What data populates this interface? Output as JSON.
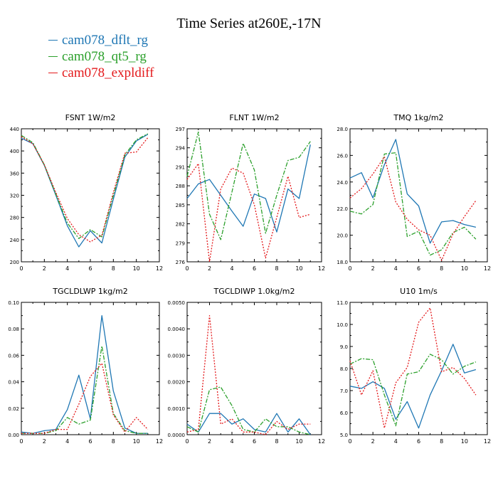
{
  "title": "Time Series at260E,-17N",
  "legend": [
    {
      "label": "cam078_dflt_rg",
      "color": "#1f77b4"
    },
    {
      "label": "cam078_qt5_rg",
      "color": "#2ca02c"
    },
    {
      "label": "cam078_expldiff",
      "color": "#e41a1c"
    }
  ],
  "chart_data": [
    {
      "type": "line",
      "title": "FSNT   1W/m2",
      "x": [
        0,
        1,
        2,
        3,
        4,
        5,
        6,
        7,
        8,
        9,
        10,
        11
      ],
      "xlim": [
        0,
        12
      ],
      "xticks": [
        "0",
        "2",
        "4",
        "6",
        "8",
        "10",
        "12"
      ],
      "ylim": [
        200,
        440
      ],
      "yticks": [
        "200",
        "240",
        "280",
        "320",
        "360",
        "400",
        "440"
      ],
      "series": [
        {
          "name": "cam078_dflt_rg",
          "values": [
            423,
            413,
            374,
            320,
            265,
            227,
            256,
            234,
            313,
            389,
            418,
            430
          ]
        },
        {
          "name": "cam078_qt5_rg",
          "values": [
            428,
            415,
            375,
            322,
            270,
            242,
            258,
            245,
            320,
            393,
            420,
            431
          ]
        },
        {
          "name": "cam078_expldiff",
          "values": [
            426,
            413,
            375,
            325,
            278,
            249,
            236,
            248,
            325,
            396,
            398,
            424
          ]
        }
      ]
    },
    {
      "type": "line",
      "title": "FLNT   1W/m2",
      "x": [
        0,
        1,
        2,
        3,
        4,
        5,
        6,
        7,
        8,
        9,
        10,
        11
      ],
      "xlim": [
        0,
        12
      ],
      "xticks": [
        "0",
        "2",
        "4",
        "6",
        "8",
        "10",
        "12"
      ],
      "ylim": [
        276,
        297
      ],
      "yticks": [
        "276",
        "279",
        "282",
        "285",
        "288",
        "291",
        "294",
        "297"
      ],
      "series": [
        {
          "name": "cam078_dflt_rg",
          "values": [
            286.0,
            288.3,
            289.0,
            286.5,
            284.0,
            281.6,
            286.7,
            286.0,
            280.7,
            287.5,
            286.0,
            294.5
          ]
        },
        {
          "name": "cam078_qt5_rg",
          "values": [
            289.5,
            296.5,
            283.5,
            279.5,
            287.0,
            294.7,
            290.5,
            280.5,
            286.5,
            292.0,
            292.5,
            295.0
          ]
        },
        {
          "name": "cam078_expldiff",
          "values": [
            289.0,
            291.5,
            276.0,
            287.5,
            290.8,
            290.0,
            285.0,
            276.6,
            283.0,
            289.5,
            283.0,
            283.5
          ]
        }
      ]
    },
    {
      "type": "line",
      "title": "TMQ   1kg/m2",
      "x": [
        0,
        1,
        2,
        3,
        4,
        5,
        6,
        7,
        8,
        9,
        10,
        11
      ],
      "xlim": [
        0,
        12
      ],
      "xticks": [
        "0",
        "2",
        "4",
        "6",
        "8",
        "10",
        "12"
      ],
      "ylim": [
        18.0,
        28.0
      ],
      "yticks": [
        "18.0",
        "20.0",
        "22.0",
        "24.0",
        "26.0",
        "28.0"
      ],
      "series": [
        {
          "name": "cam078_dflt_rg",
          "values": [
            24.3,
            24.7,
            22.8,
            25.3,
            27.2,
            23.1,
            22.2,
            19.4,
            21.0,
            21.1,
            20.8,
            20.6
          ]
        },
        {
          "name": "cam078_qt5_rg",
          "values": [
            21.8,
            21.6,
            22.3,
            26.1,
            26.2,
            19.9,
            20.3,
            18.5,
            18.9,
            20.2,
            20.6,
            19.7
          ]
        },
        {
          "name": "cam078_expldiff",
          "values": [
            22.8,
            23.5,
            24.6,
            25.9,
            22.5,
            21.2,
            20.4,
            20.0,
            18.1,
            20.1,
            21.4,
            22.6
          ]
        }
      ]
    },
    {
      "type": "line",
      "title": "TGCLDLWP   1kg/m2",
      "x": [
        0,
        1,
        2,
        3,
        4,
        5,
        6,
        7,
        8,
        9,
        10,
        11
      ],
      "xlim": [
        0,
        12
      ],
      "xticks": [
        "0",
        "2",
        "4",
        "6",
        "8",
        "10",
        "12"
      ],
      "ylim": [
        0,
        0.1
      ],
      "yticks": [
        "0.00",
        "0.02",
        "0.04",
        "0.06",
        "0.08",
        "0.10"
      ],
      "series": [
        {
          "name": "cam078_dflt_rg",
          "values": [
            0.002,
            0.001,
            0.003,
            0.004,
            0.019,
            0.045,
            0.012,
            0.09,
            0.033,
            0.005,
            0.001,
            0.001
          ]
        },
        {
          "name": "cam078_qt5_rg",
          "values": [
            0.001,
            0.001,
            0.001,
            0.003,
            0.013,
            0.008,
            0.011,
            0.067,
            0.016,
            0.003,
            0.001,
            0.001
          ]
        },
        {
          "name": "cam078_expldiff",
          "values": [
            0.001,
            0.001,
            0.001,
            0.004,
            0.004,
            0.023,
            0.044,
            0.054,
            0.015,
            0.002,
            0.013,
            0.004
          ]
        }
      ]
    },
    {
      "type": "line",
      "title": "TGCLDIWP   1.0kg/m2",
      "x": [
        0,
        1,
        2,
        3,
        4,
        5,
        6,
        7,
        8,
        9,
        10,
        11
      ],
      "xlim": [
        0,
        12
      ],
      "xticks": [
        "0",
        "2",
        "4",
        "6",
        "8",
        "10",
        "12"
      ],
      "ylim": [
        0,
        0.005
      ],
      "yticks": [
        "0.0000",
        "0.0010",
        "0.0020",
        "0.0030",
        "0.0040",
        "0.0050"
      ],
      "series": [
        {
          "name": "cam078_dflt_rg",
          "values": [
            0.0004,
            0.0001,
            0.0008,
            0.0008,
            0.0004,
            0.0006,
            0.0002,
            0.0001,
            0.0008,
            0.0001,
            0.0006,
            0.0
          ]
        },
        {
          "name": "cam078_qt5_rg",
          "values": [
            0.0003,
            0.0001,
            0.0017,
            0.0018,
            0.0011,
            0.0002,
            0.0001,
            0.0006,
            0.0003,
            0.0003,
            0.0001,
            0.0
          ]
        },
        {
          "name": "cam078_expldiff",
          "values": [
            0.0001,
            0.0002,
            0.0045,
            0.0004,
            0.0006,
            0.0001,
            0.0001,
            0.0,
            0.0005,
            0.0002,
            0.0004,
            0.0004
          ]
        }
      ]
    },
    {
      "type": "line",
      "title": "U10   1m/s",
      "x": [
        0,
        1,
        2,
        3,
        4,
        5,
        6,
        7,
        8,
        9,
        10,
        11
      ],
      "xlim": [
        0,
        12
      ],
      "xticks": [
        "0",
        "2",
        "4",
        "6",
        "8",
        "10",
        "12"
      ],
      "ylim": [
        5.0,
        11.0
      ],
      "yticks": [
        "5.0",
        "6.0",
        "7.0",
        "8.0",
        "9.0",
        "10.0",
        "11.0"
      ],
      "series": [
        {
          "name": "cam078_dflt_rg",
          "values": [
            7.2,
            7.1,
            7.4,
            7.1,
            5.7,
            6.5,
            5.3,
            6.8,
            7.9,
            9.1,
            7.8,
            7.95
          ]
        },
        {
          "name": "cam078_qt5_rg",
          "values": [
            8.2,
            8.45,
            8.4,
            6.8,
            5.4,
            7.75,
            7.85,
            8.65,
            8.4,
            7.75,
            8.1,
            8.3
          ]
        },
        {
          "name": "cam078_expldiff",
          "values": [
            8.35,
            6.8,
            7.9,
            5.3,
            7.35,
            8.05,
            10.1,
            10.75,
            7.85,
            8.05,
            7.55,
            6.8
          ]
        }
      ]
    }
  ]
}
